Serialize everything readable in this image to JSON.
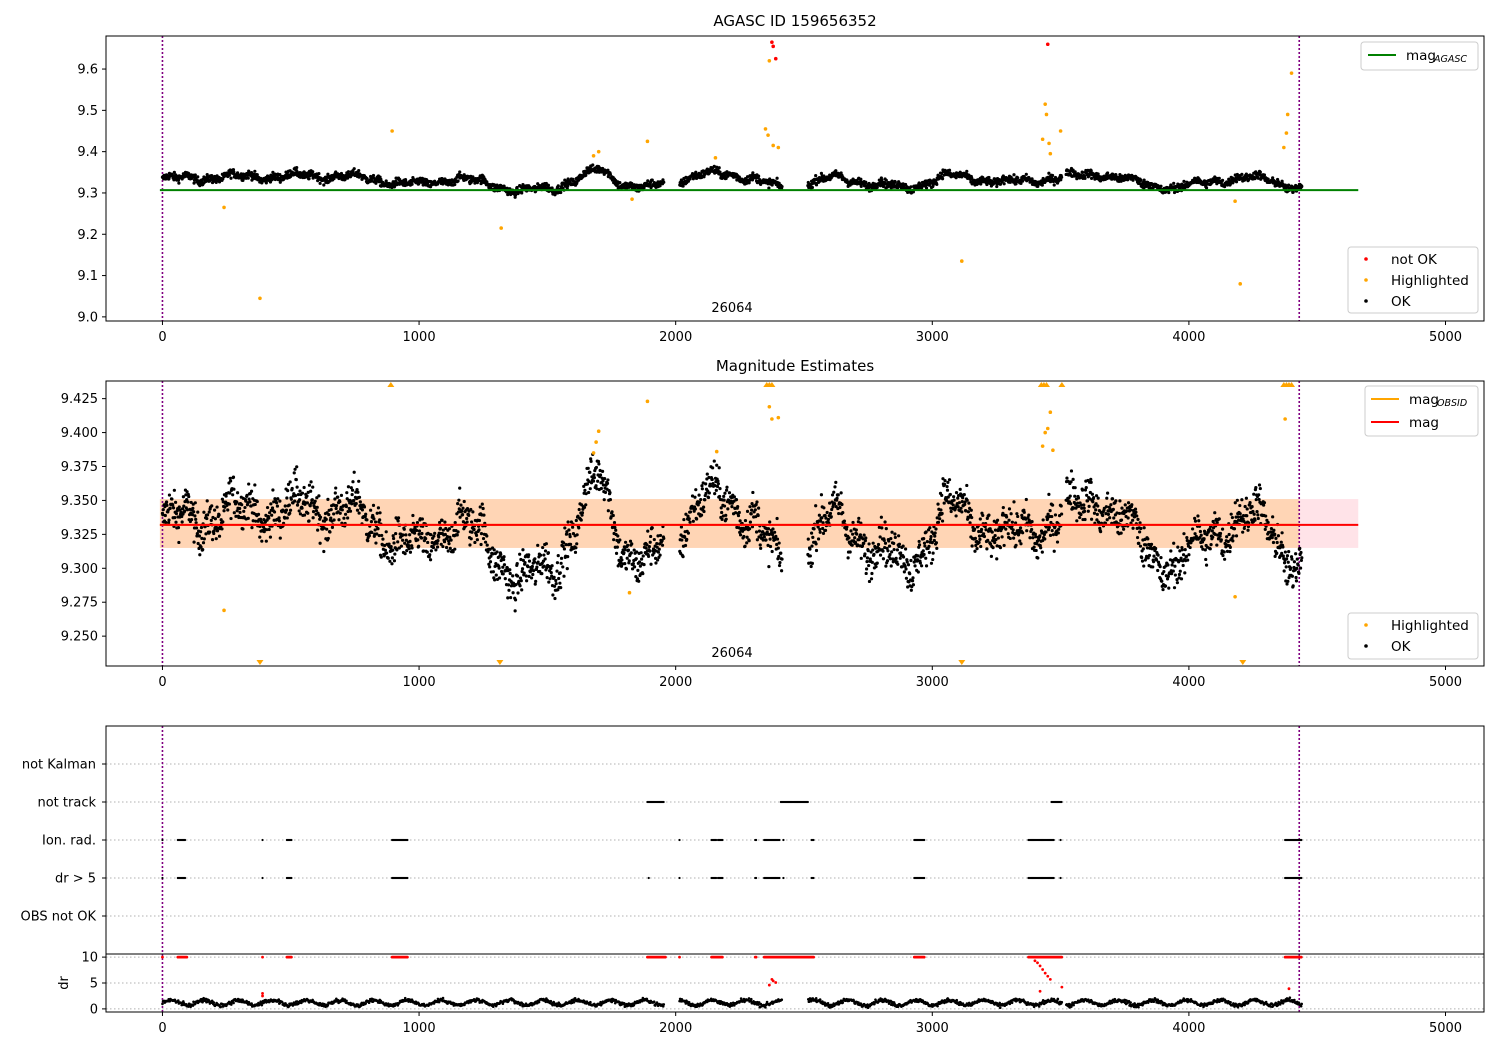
{
  "colors": {
    "ok": "#000000",
    "highlighted": "#ffa500",
    "not_ok": "#ff0000",
    "mag_agasc": "#008000",
    "mag_obsid": "#ffa500",
    "mag": "#ff0000",
    "obsid_boundary": "#800080",
    "band_fill": "#ffc0cb"
  },
  "chart_data": [
    {
      "type": "scatter",
      "title": "AGASC ID 159656352",
      "xlim": [
        -220,
        5150
      ],
      "ylim": [
        8.99,
        9.68
      ],
      "xticks": [
        0,
        1000,
        2000,
        3000,
        4000,
        5000
      ],
      "yticks": [
        9.0,
        9.1,
        9.2,
        9.3,
        9.4,
        9.5,
        9.6
      ],
      "ytick_labels": [
        "9.0",
        "9.1",
        "9.2",
        "9.3",
        "9.4",
        "9.5",
        "9.6"
      ],
      "obsid_boundaries": [
        0,
        4430
      ],
      "obsid_labels": [
        {
          "x": 2215,
          "text": "26064"
        }
      ],
      "mag_agasc": {
        "value": 9.307,
        "x": [
          -10,
          4660
        ]
      },
      "legend_lines": [
        "mag",
        "AGASC"
      ],
      "legend_points": [
        "not OK",
        "Highlighted",
        "OK"
      ],
      "highlighted_points": [
        [
          240,
          9.265
        ],
        [
          380,
          9.045
        ],
        [
          895,
          9.45
        ],
        [
          1320,
          9.215
        ],
        [
          1680,
          9.39
        ],
        [
          1700,
          9.4
        ],
        [
          1830,
          9.285
        ],
        [
          1890,
          9.425
        ],
        [
          2155,
          9.385
        ],
        [
          2350,
          9.455
        ],
        [
          2360,
          9.44
        ],
        [
          2365,
          9.62
        ],
        [
          2380,
          9.415
        ],
        [
          2400,
          9.41
        ],
        [
          3115,
          9.135
        ],
        [
          3430,
          9.43
        ],
        [
          3440,
          9.515
        ],
        [
          3445,
          9.49
        ],
        [
          3455,
          9.42
        ],
        [
          3460,
          9.395
        ],
        [
          3500,
          9.45
        ],
        [
          4180,
          9.28
        ],
        [
          4200,
          9.08
        ],
        [
          4370,
          9.41
        ],
        [
          4380,
          9.445
        ],
        [
          4385,
          9.49
        ],
        [
          4400,
          9.59
        ]
      ],
      "not_ok_points": [
        [
          2375,
          9.665
        ],
        [
          2380,
          9.655
        ],
        [
          2390,
          9.625
        ],
        [
          3450,
          9.66
        ]
      ]
    },
    {
      "type": "scatter",
      "title": "Magnitude Estimates",
      "xlim": [
        -220,
        5150
      ],
      "ylim": [
        9.228,
        9.438
      ],
      "xticks": [
        0,
        1000,
        2000,
        3000,
        4000,
        5000
      ],
      "yticks": [
        9.25,
        9.275,
        9.3,
        9.325,
        9.35,
        9.375,
        9.4,
        9.425
      ],
      "ytick_labels": [
        "9.250",
        "9.275",
        "9.300",
        "9.325",
        "9.350",
        "9.375",
        "9.400",
        "9.425"
      ],
      "obsid_boundaries": [
        0,
        4430
      ],
      "obsid_labels": [
        {
          "x": 2215,
          "text": "26064"
        }
      ],
      "mag": {
        "value": 9.332,
        "band": [
          9.315,
          9.351
        ],
        "x": [
          -10,
          4660
        ]
      },
      "mag_obsid": {
        "value": 9.332,
        "band": [
          9.315,
          9.351
        ],
        "x": [
          -10,
          4660
        ]
      },
      "legend_lines": [
        "mag",
        "OBSID",
        "mag"
      ],
      "legend_points": [
        "Highlighted",
        "OK"
      ],
      "highlighted_points": [
        [
          240,
          9.269
        ],
        [
          1680,
          9.385
        ],
        [
          1690,
          9.393
        ],
        [
          1700,
          9.401
        ],
        [
          1820,
          9.282
        ],
        [
          1890,
          9.423
        ],
        [
          2160,
          9.386
        ],
        [
          2365,
          9.419
        ],
        [
          2375,
          9.41
        ],
        [
          2400,
          9.411
        ],
        [
          3430,
          9.39
        ],
        [
          3440,
          9.4
        ],
        [
          3450,
          9.403
        ],
        [
          3460,
          9.415
        ],
        [
          3470,
          9.387
        ],
        [
          4180,
          9.279
        ],
        [
          4375,
          9.41
        ]
      ],
      "clipped_high": [
        890,
        2355,
        2365,
        2375,
        3425,
        3435,
        3445,
        3505,
        4370,
        4380,
        4390,
        4400
      ],
      "clipped_low": [
        380,
        1315,
        3115,
        4210
      ]
    },
    {
      "type": "scatter",
      "title": "",
      "xlim": [
        -220,
        5150
      ],
      "ylim": [
        0,
        6
      ],
      "xticks": [
        0,
        1000,
        2000,
        3000,
        4000,
        5000
      ],
      "flag_rows": [
        "not Kalman",
        "not track",
        "Ion. rad.",
        "dr > 5",
        "OBS not OK"
      ],
      "flag_segments": {
        "not track": [
          [
            1890,
            1955
          ],
          [
            2410,
            2515
          ],
          [
            3465,
            3505
          ]
        ],
        "Ion. rad.": [
          [
            0,
            2
          ],
          [
            60,
            90
          ],
          [
            390,
            392
          ],
          [
            485,
            505
          ],
          [
            895,
            955
          ],
          [
            2015,
            2017
          ],
          [
            2140,
            2160
          ],
          [
            2165,
            2185
          ],
          [
            2310,
            2315
          ],
          [
            2345,
            2405
          ],
          [
            2420,
            2422
          ],
          [
            2530,
            2540
          ],
          [
            2930,
            2970
          ],
          [
            3375,
            3475
          ],
          [
            3500,
            3502
          ],
          [
            4375,
            4440
          ]
        ],
        "dr > 5": [
          [
            0,
            2
          ],
          [
            60,
            90
          ],
          [
            390,
            392
          ],
          [
            485,
            505
          ],
          [
            895,
            955
          ],
          [
            1895,
            1897
          ],
          [
            2015,
            2017
          ],
          [
            2140,
            2160
          ],
          [
            2165,
            2185
          ],
          [
            2310,
            2315
          ],
          [
            2345,
            2405
          ],
          [
            2420,
            2422
          ],
          [
            2530,
            2540
          ],
          [
            2930,
            2970
          ],
          [
            3375,
            3475
          ],
          [
            3500,
            3502
          ],
          [
            4375,
            4440
          ]
        ]
      },
      "obsid_boundaries": [
        0,
        4430
      ]
    },
    {
      "type": "scatter",
      "title": "",
      "ylabel": "dr",
      "xlim": [
        -220,
        5150
      ],
      "ylim": [
        -0.6,
        10.6
      ],
      "xticks": [
        0,
        1000,
        2000,
        3000,
        4000,
        5000
      ],
      "xtick_labels": [
        "0",
        "1000",
        "2000",
        "3000",
        "4000",
        "5000"
      ],
      "yticks": [
        0,
        5,
        10
      ],
      "ytick_labels": [
        "0",
        "5",
        "10"
      ],
      "obsid_boundaries": [
        0,
        4430
      ],
      "capped_segments": [
        [
          0,
          2
        ],
        [
          60,
          95
        ],
        [
          390,
          392
        ],
        [
          485,
          505
        ],
        [
          895,
          955
        ],
        [
          1890,
          1960
        ],
        [
          2015,
          2017
        ],
        [
          2140,
          2185
        ],
        [
          2310,
          2315
        ],
        [
          2345,
          2540
        ],
        [
          2930,
          2970
        ],
        [
          3375,
          3505
        ],
        [
          4375,
          4440
        ]
      ],
      "red_points": [
        [
          2365,
          4.6
        ],
        [
          2375,
          5.7
        ],
        [
          2380,
          5.4
        ],
        [
          2390,
          5.1
        ],
        [
          3400,
          9.3
        ],
        [
          3410,
          8.9
        ],
        [
          3420,
          8.3
        ],
        [
          3430,
          7.6
        ],
        [
          3440,
          6.9
        ],
        [
          3450,
          6.3
        ],
        [
          3460,
          5.7
        ],
        [
          3420,
          3.4
        ],
        [
          3505,
          4.2
        ],
        [
          4390,
          3.9
        ],
        [
          390,
          3.0
        ],
        [
          390,
          2.5
        ]
      ]
    }
  ]
}
